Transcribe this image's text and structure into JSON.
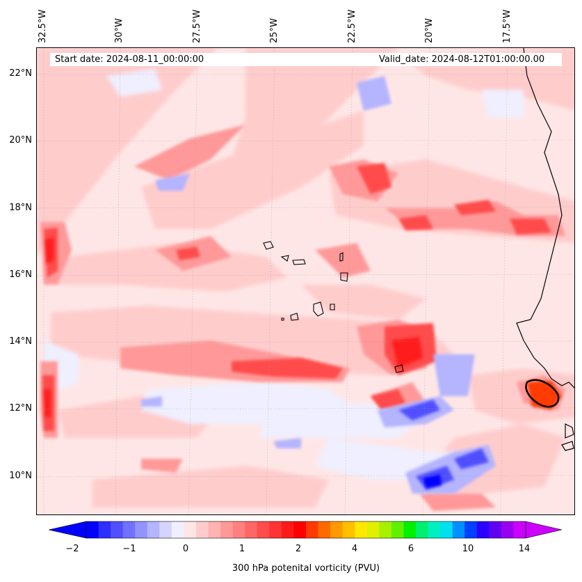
{
  "header": {
    "start_label": "Start date: 2024-08-11_00:00:00",
    "valid_label": "Valid_date: 2024-08-12T01:00:00.00"
  },
  "axes": {
    "lon_labels": [
      "32.5°W",
      "30°W",
      "27.5°W",
      "25°W",
      "22.5°W",
      "20°W",
      "17.5°W"
    ],
    "lat_labels": [
      "22°N",
      "20°N",
      "18°N",
      "16°N",
      "14°N",
      "12°N",
      "10°N"
    ]
  },
  "colorbar": {
    "title": "300 hPa potenital vorticity (PVU)",
    "tick_labels": [
      "−2",
      "−1",
      "0",
      "1",
      "2",
      "4",
      "6",
      "10",
      "14"
    ],
    "colors": [
      "#0000ff",
      "#2e2eff",
      "#5050ff",
      "#7171ff",
      "#9393ff",
      "#b4b4ff",
      "#d4d4ff",
      "#efefff",
      "#ffe6e6",
      "#ffcccc",
      "#ffb3b3",
      "#ff9999",
      "#ff8080",
      "#ff6666",
      "#ff4c4c",
      "#ff3333",
      "#ff1a1a",
      "#ff0000",
      "#ff3a00",
      "#ff6a00",
      "#ff9900",
      "#ffc000",
      "#ffe800",
      "#e0f000",
      "#a8f000",
      "#60f000",
      "#00f000",
      "#00f070",
      "#00f0c0",
      "#00e0f0",
      "#0090ff",
      "#0040ff",
      "#2a00ff",
      "#6000f0",
      "#9a00f0",
      "#cc00ff"
    ]
  },
  "map_colors": {
    "background": "#ffe6e6",
    "light_red": "#ffcccc",
    "mid_red": "#ff9999",
    "strong_red": "#ff4c4c",
    "core_red": "#ff1a1a",
    "orange": "#ff3a00",
    "light_blue": "#efefff",
    "mid_blue": "#b4b4ff",
    "strong_blue": "#5050ff",
    "deep_blue": "#0000ff",
    "coast": "#000000"
  }
}
